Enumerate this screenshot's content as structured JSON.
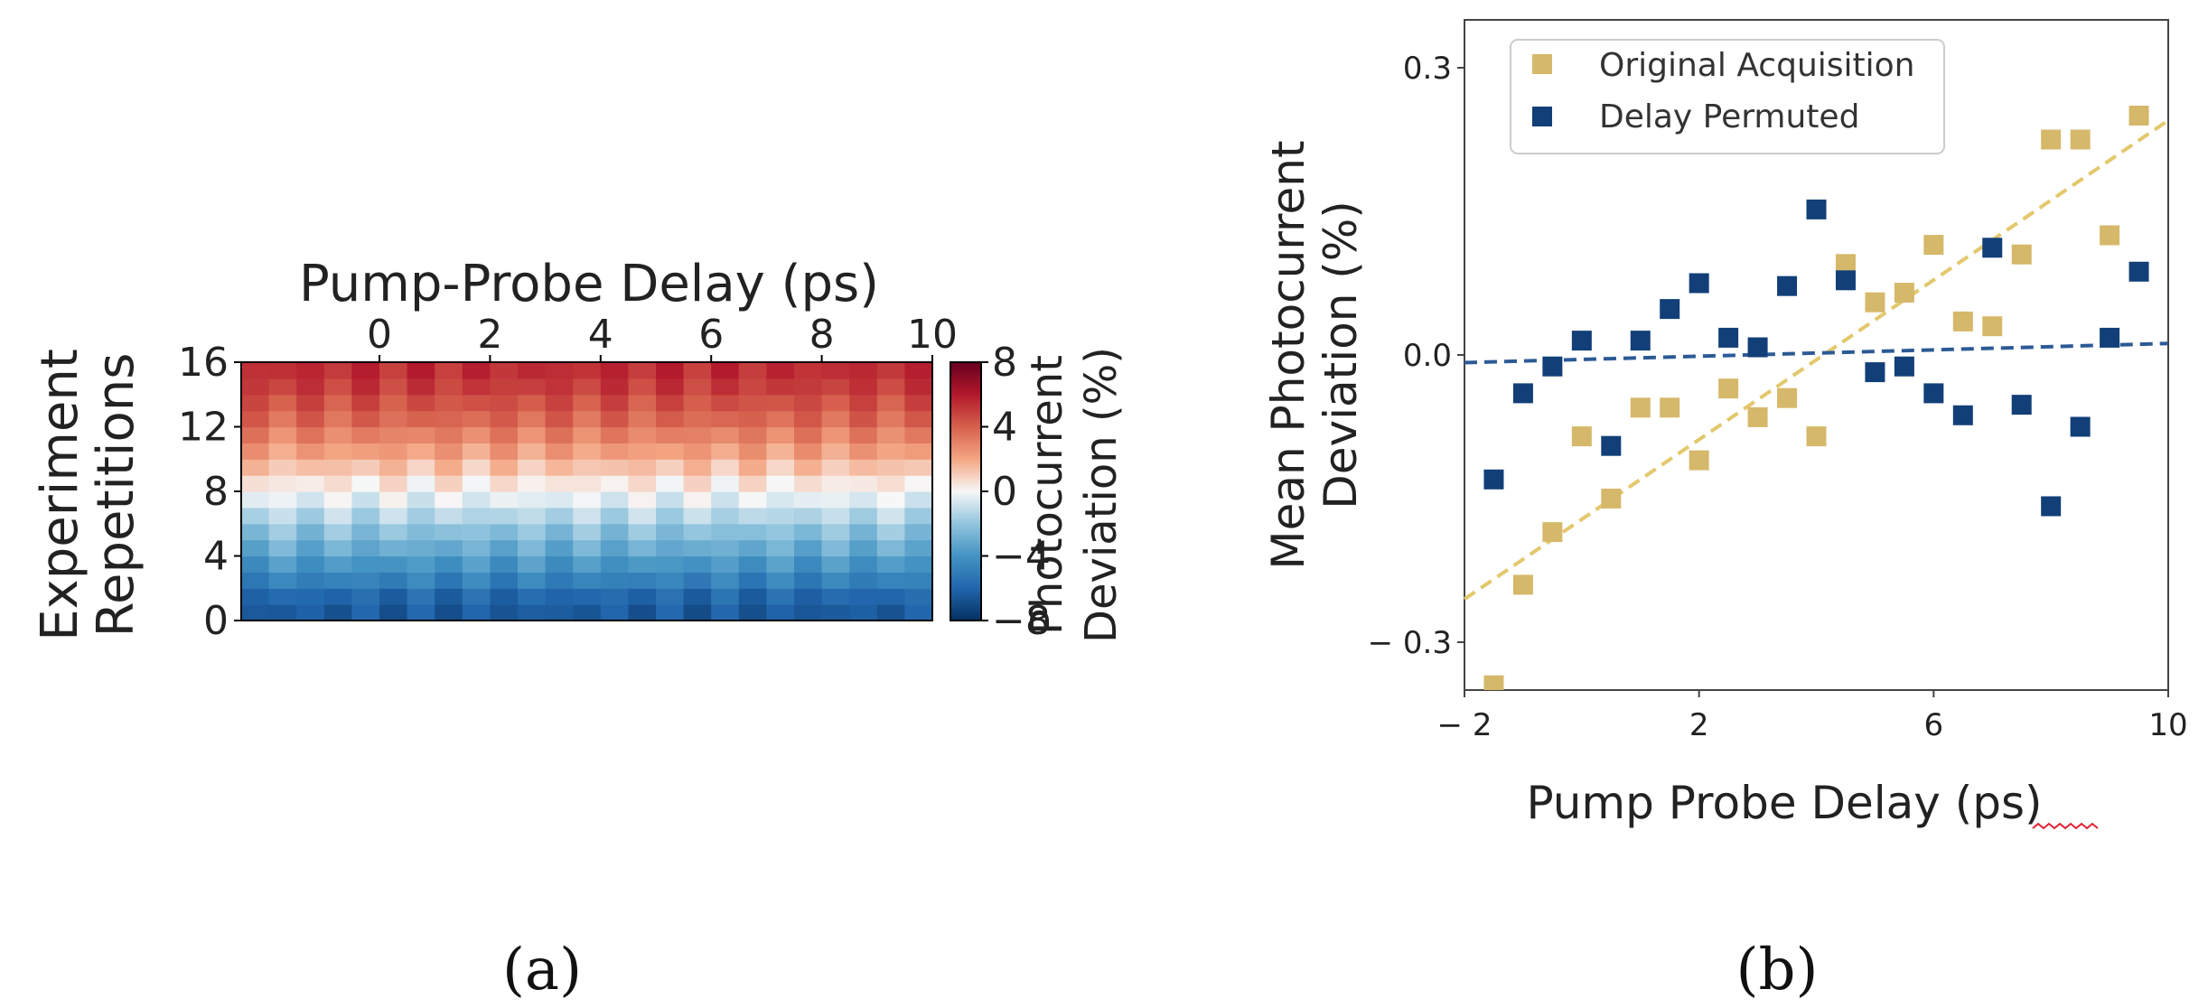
{
  "panel_labels": {
    "a": "(a)",
    "b": "(b)"
  },
  "colors": {
    "original": "#d6b86a",
    "permuted": "#123f78",
    "fit_original": "#e3c86d",
    "fit_permuted": "#2c5a95",
    "cmap_low": "#053061",
    "cmap_mid": "#f7f7f7",
    "cmap_high": "#b2182b"
  },
  "chart_data": [
    {
      "id": "a",
      "type": "heatmap",
      "title": "Pump-Probe Delay (ps)",
      "xlabel": "Pump-Probe Delay (ps)",
      "ylabel": "Experiment\nRepetitions",
      "xlim": [
        -2.5,
        10
      ],
      "ylim": [
        0,
        16
      ],
      "xticks": [
        "0",
        "2",
        "4",
        "6",
        "8",
        "10"
      ],
      "xtick_values": [
        0,
        2,
        4,
        6,
        8,
        10
      ],
      "yticks": [
        "0",
        "4",
        "8",
        "12",
        "16"
      ],
      "ytick_values": [
        0,
        4,
        8,
        12,
        16
      ],
      "n_cols": 25,
      "n_rows": 16,
      "row_means": [
        -6.4,
        -5.9,
        -4.8,
        -3.9,
        -3.0,
        -2.2,
        -1.3,
        -0.4,
        0.4,
        1.3,
        2.2,
        3.0,
        3.8,
        4.4,
        5.0,
        5.4
      ],
      "colorbar": {
        "label": "Photocurrent\nDeviation (%)",
        "range": [
          -8,
          8
        ],
        "ticks": [
          "8",
          "4",
          "0",
          "−4",
          "−8"
        ],
        "tick_values": [
          8,
          4,
          0,
          -4,
          -8
        ]
      }
    },
    {
      "id": "b",
      "type": "scatter",
      "xlabel": "Pump Probe Delay (ps)",
      "ylabel": "Mean Photocurrent\nDeviation (%)",
      "xlim": [
        -2,
        10
      ],
      "ylim": [
        -0.35,
        0.35
      ],
      "xticks": [
        "− 2",
        "2",
        "6",
        "10"
      ],
      "xtick_values": [
        -2,
        2,
        6,
        10
      ],
      "yticks": [
        "0.3",
        "0.0",
        "− 0.3"
      ],
      "ytick_values": [
        0.3,
        0.0,
        -0.3
      ],
      "legend": {
        "position": "top-left",
        "entries": [
          "Original Acquisition",
          "Delay Permuted"
        ]
      },
      "series": [
        {
          "name": "Original Acquisition",
          "marker": "square",
          "points": [
            [
              -1.5,
              -0.345
            ],
            [
              -1.0,
              -0.24
            ],
            [
              -0.5,
              -0.185
            ],
            [
              0.0,
              -0.085
            ],
            [
              0.5,
              -0.15
            ],
            [
              1.0,
              -0.055
            ],
            [
              1.5,
              -0.055
            ],
            [
              2.0,
              -0.11
            ],
            [
              2.5,
              -0.035
            ],
            [
              3.0,
              -0.065
            ],
            [
              3.5,
              -0.045
            ],
            [
              4.0,
              -0.085
            ],
            [
              4.5,
              0.095
            ],
            [
              5.0,
              0.055
            ],
            [
              5.5,
              0.065
            ],
            [
              6.0,
              0.115
            ],
            [
              6.5,
              0.035
            ],
            [
              7.0,
              0.03
            ],
            [
              7.5,
              0.105
            ],
            [
              8.0,
              0.225
            ],
            [
              8.5,
              0.225
            ],
            [
              9.0,
              0.125
            ],
            [
              9.5,
              0.25
            ]
          ],
          "fit": {
            "style": "dashed",
            "from": [
              -2,
              -0.255
            ],
            "to": [
              10,
              0.245
            ]
          }
        },
        {
          "name": "Delay Permuted",
          "marker": "square",
          "points": [
            [
              -1.5,
              -0.13
            ],
            [
              -1.0,
              -0.04
            ],
            [
              -0.5,
              -0.012
            ],
            [
              0.0,
              0.015
            ],
            [
              0.5,
              -0.095
            ],
            [
              1.0,
              0.015
            ],
            [
              1.5,
              0.048
            ],
            [
              2.0,
              0.075
            ],
            [
              2.5,
              0.018
            ],
            [
              3.0,
              0.008
            ],
            [
              3.5,
              0.072
            ],
            [
              4.0,
              0.152
            ],
            [
              4.5,
              0.078
            ],
            [
              5.0,
              -0.018
            ],
            [
              5.5,
              -0.012
            ],
            [
              6.0,
              -0.04
            ],
            [
              6.5,
              -0.063
            ],
            [
              7.0,
              0.112
            ],
            [
              7.5,
              -0.052
            ],
            [
              8.0,
              -0.158
            ],
            [
              8.5,
              -0.075
            ],
            [
              9.0,
              0.018
            ],
            [
              9.5,
              0.087
            ]
          ],
          "fit": {
            "style": "dashed",
            "from": [
              -2,
              -0.008
            ],
            "to": [
              10,
              0.012
            ]
          }
        }
      ]
    }
  ]
}
